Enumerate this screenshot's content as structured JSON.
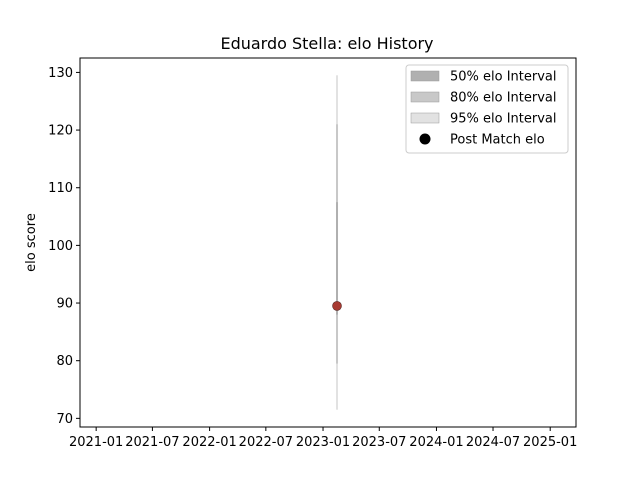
{
  "chart_data": {
    "type": "scatter",
    "title": "Eduardo Stella: elo History",
    "xlabel": "",
    "ylabel": "elo score",
    "x_ticks": [
      "2021-01",
      "2021-07",
      "2022-01",
      "2022-07",
      "2023-01",
      "2023-07",
      "2024-01",
      "2024-07",
      "2025-01"
    ],
    "y_ticks": [
      70,
      80,
      90,
      100,
      110,
      120,
      130
    ],
    "xlim": [
      "2020-11-10",
      "2025-03-25"
    ],
    "ylim": [
      68.5,
      132.5
    ],
    "grid": false,
    "legend_position": "top-right",
    "legend": [
      {
        "label": "50% elo Interval",
        "color": "#b0b0b0",
        "kind": "patch"
      },
      {
        "label": "80% elo Interval",
        "color": "#c8c8c8",
        "kind": "patch"
      },
      {
        "label": "95% elo Interval",
        "color": "#e2e2e2",
        "kind": "patch"
      },
      {
        "label": "Post Match elo",
        "color": "#000000",
        "kind": "marker"
      }
    ],
    "intervals": [
      {
        "level": "95%",
        "low": 71.5,
        "high": 129.5,
        "color": "#e2e2e2"
      },
      {
        "level": "80%",
        "low": 79.5,
        "high": 121.0,
        "color": "#c8c8c8"
      },
      {
        "level": "50%",
        "low": 88.0,
        "high": 107.5,
        "color": "#b0b0b0"
      }
    ],
    "points": [
      {
        "x": "2023-02-15",
        "y": 89.5,
        "color": "#a83a32"
      }
    ]
  }
}
